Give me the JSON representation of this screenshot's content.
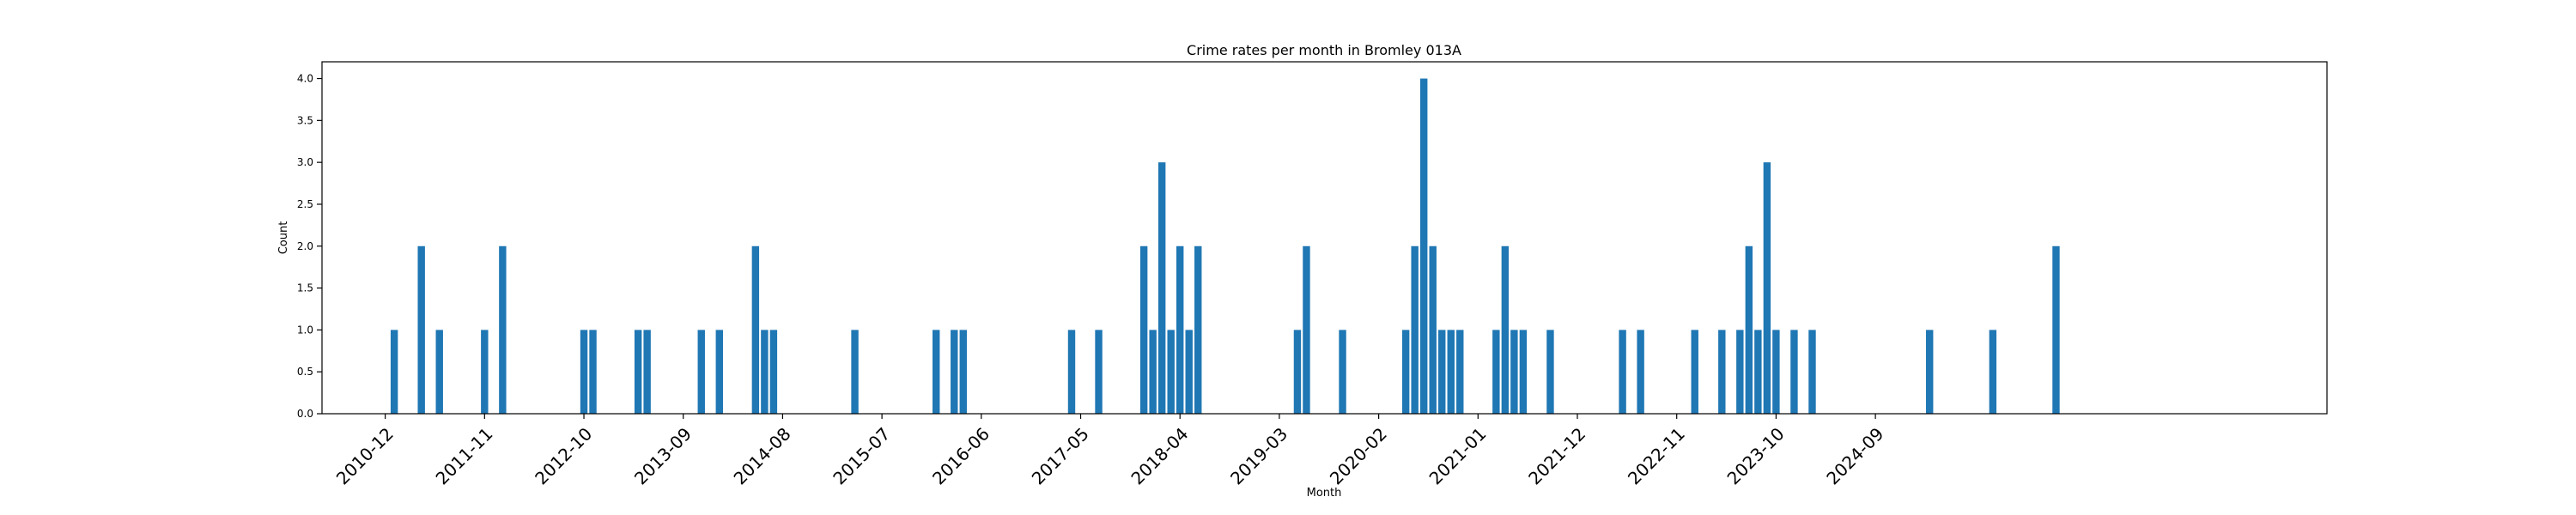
{
  "chart_data": {
    "type": "bar",
    "title": "Crime rates per month in Bromley 013A",
    "xlabel": "Month",
    "ylabel": "Count",
    "ylim": [
      0,
      4.2
    ],
    "yticks": [
      "0.0",
      "0.5",
      "1.0",
      "1.5",
      "2.0",
      "2.5",
      "3.0",
      "3.5",
      "4.0"
    ],
    "xticks": [
      "2010-12",
      "2011-11",
      "2012-10",
      "2013-09",
      "2014-08",
      "2015-07",
      "2016-06",
      "2017-05",
      "2018-04",
      "2019-03",
      "2020-02",
      "2021-01",
      "2021-12",
      "2022-11",
      "2023-10",
      "2024-09"
    ],
    "xlim": [
      "2010-05",
      "2028-11"
    ],
    "grid": false,
    "color": "#1f77b4",
    "months": [
      "2011-01",
      "2011-04",
      "2011-06",
      "2011-11",
      "2012-01",
      "2012-10",
      "2012-11",
      "2013-04",
      "2013-05",
      "2013-11",
      "2014-01",
      "2014-05",
      "2014-06",
      "2014-07",
      "2015-04",
      "2016-01",
      "2016-03",
      "2016-04",
      "2017-04",
      "2017-07",
      "2017-12",
      "2018-01",
      "2018-02",
      "2018-03",
      "2018-04",
      "2018-05",
      "2018-06",
      "2019-05",
      "2019-06",
      "2019-10",
      "2020-05",
      "2020-06",
      "2020-07",
      "2020-08",
      "2020-09",
      "2020-10",
      "2020-11",
      "2021-03",
      "2021-04",
      "2021-05",
      "2021-06",
      "2021-09",
      "2022-05",
      "2022-07",
      "2023-01",
      "2023-04",
      "2023-06",
      "2023-07",
      "2023-08",
      "2023-09",
      "2023-10",
      "2023-12",
      "2024-02",
      "2025-03",
      "2025-10",
      "2026-05"
    ],
    "values": [
      1,
      2,
      1,
      1,
      2,
      1,
      1,
      1,
      1,
      1,
      1,
      2,
      1,
      1,
      1,
      1,
      1,
      1,
      1,
      1,
      2,
      1,
      3,
      1,
      2,
      1,
      2,
      1,
      2,
      1,
      1,
      2,
      4,
      2,
      1,
      1,
      1,
      1,
      2,
      1,
      1,
      1,
      1,
      1,
      1,
      1,
      1,
      2,
      1,
      3,
      1,
      1,
      1,
      1,
      1,
      2
    ]
  }
}
